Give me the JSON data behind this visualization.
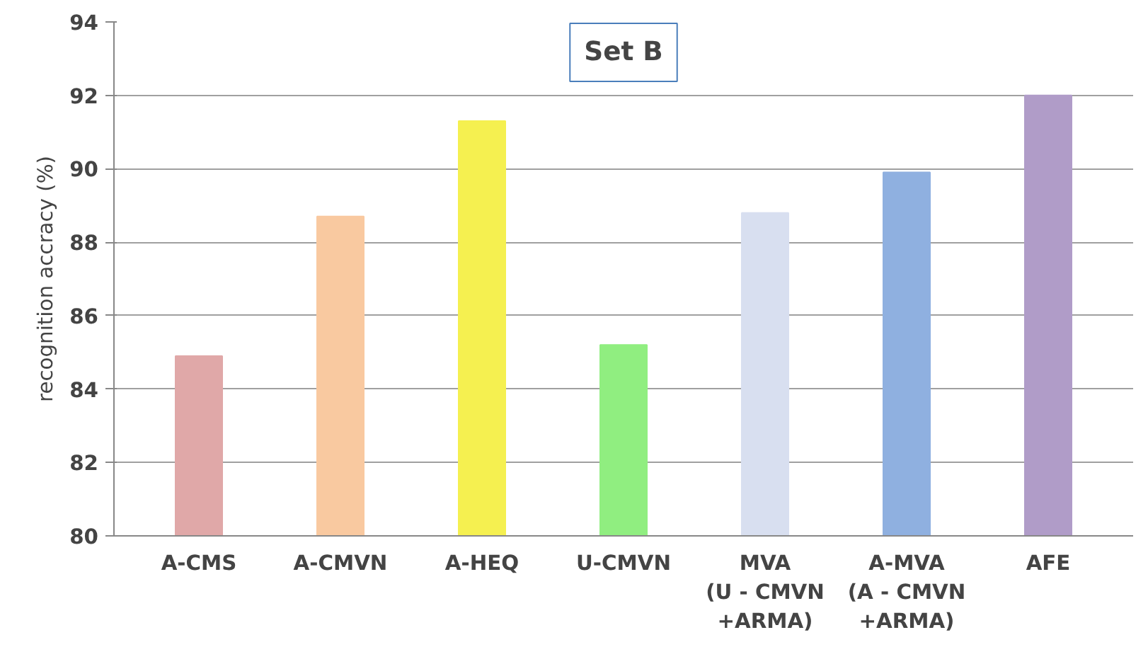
{
  "chart_data": {
    "type": "bar",
    "title": "Set B",
    "ylabel": "recognition accracy (%)",
    "categories": [
      "A-CMS",
      "A-CMVN",
      "A-HEQ",
      "U-CMVN",
      "MVA\n(U - CMVN\n+ARMA)",
      "A-MVA\n(A - CMVN\n+ARMA)",
      "AFE"
    ],
    "values": [
      84.9,
      88.7,
      91.3,
      85.2,
      88.8,
      89.9,
      92.0
    ],
    "colors": [
      "#e0a8a8",
      "#f9c9a0",
      "#f5f050",
      "#90ee80",
      "#d8dff0",
      "#8fb0e0",
      "#b09cc8"
    ],
    "ylim": [
      80,
      94
    ],
    "yticks": [
      80,
      82,
      84,
      86,
      88,
      90,
      92,
      94
    ],
    "grid": "y"
  }
}
